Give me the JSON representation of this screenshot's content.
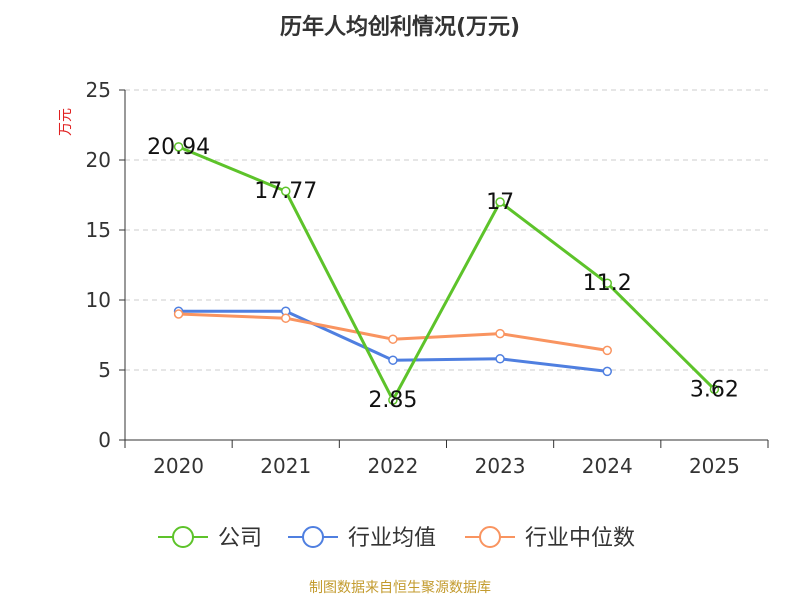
{
  "chart_data": {
    "type": "line",
    "title": "历年人均创利情况(万元)",
    "ylabel": "万元",
    "categories": [
      "2020",
      "2021",
      "2022",
      "2023",
      "2024",
      "2025"
    ],
    "ylim": [
      0,
      25
    ],
    "yticks": [
      0,
      5,
      10,
      15,
      20,
      25
    ],
    "grid": true,
    "legend_position": "bottom",
    "series": [
      {
        "name": "公司",
        "color": "#5dc32a",
        "values": [
          20.94,
          17.77,
          2.85,
          17,
          11.2,
          3.62
        ],
        "labels": [
          "20.94",
          "17.77",
          "2.85",
          "17",
          "11.2",
          "3.62"
        ]
      },
      {
        "name": "行业均值",
        "color": "#4f7fe0",
        "values": [
          9.2,
          9.2,
          5.7,
          5.8,
          4.9,
          null
        ],
        "labels": []
      },
      {
        "name": "行业中位数",
        "color": "#f99460",
        "values": [
          9.0,
          8.7,
          7.2,
          7.6,
          6.4,
          null
        ],
        "labels": []
      }
    ],
    "source": "制图数据来自恒生聚源数据库"
  }
}
